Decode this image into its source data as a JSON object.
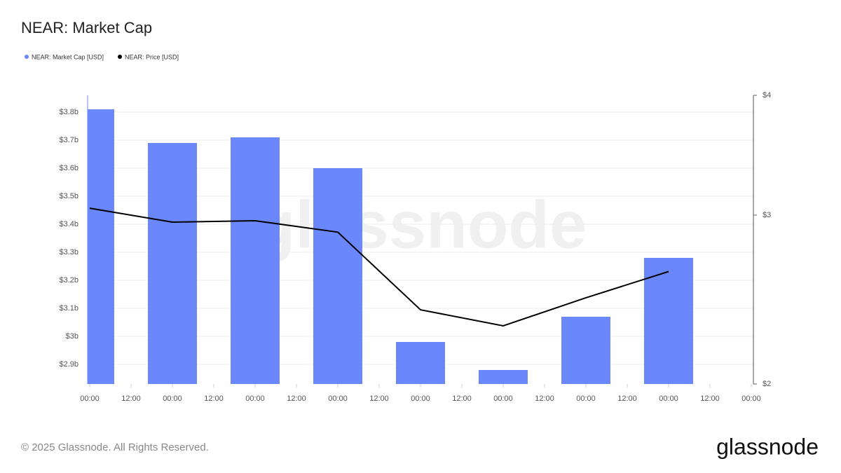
{
  "title": "NEAR: Market Cap",
  "watermark": "glassnode",
  "footer": {
    "copyright": "© 2025 Glassnode. All Rights Reserved.",
    "logo": "glassnode"
  },
  "chart_data": {
    "type": "bar",
    "x": [
      0,
      24,
      48,
      72,
      96,
      120,
      144,
      168
    ],
    "xlim": [
      0,
      192
    ],
    "xticks": [
      {
        "value": 0,
        "label": "00:00"
      },
      {
        "value": 12,
        "label": "12:00"
      },
      {
        "value": 24,
        "label": "00:00"
      },
      {
        "value": 36,
        "label": "12:00"
      },
      {
        "value": 48,
        "label": "00:00"
      },
      {
        "value": 60,
        "label": "12:00"
      },
      {
        "value": 72,
        "label": "00:00"
      },
      {
        "value": 84,
        "label": "12:00"
      },
      {
        "value": 96,
        "label": "00:00"
      },
      {
        "value": 108,
        "label": "12:00"
      },
      {
        "value": 120,
        "label": "00:00"
      },
      {
        "value": 132,
        "label": "12:00"
      },
      {
        "value": 144,
        "label": "00:00"
      },
      {
        "value": 156,
        "label": "12:00"
      },
      {
        "value": 168,
        "label": "00:00"
      },
      {
        "value": 180,
        "label": "12:00"
      },
      {
        "value": 192,
        "label": "00:00"
      }
    ],
    "ylim": [
      2.83,
      3.86
    ],
    "yticks": [
      {
        "value": 2.9,
        "label": "$2.9b"
      },
      {
        "value": 3.0,
        "label": "$3b"
      },
      {
        "value": 3.1,
        "label": "$3.1b"
      },
      {
        "value": 3.2,
        "label": "$3.2b"
      },
      {
        "value": 3.3,
        "label": "$3.3b"
      },
      {
        "value": 3.4,
        "label": "$3.4b"
      },
      {
        "value": 3.5,
        "label": "$3.5b"
      },
      {
        "value": 3.6,
        "label": "$3.6b"
      },
      {
        "value": 3.7,
        "label": "$3.7b"
      },
      {
        "value": 3.8,
        "label": "$3.8b"
      }
    ],
    "y2lim": [
      2,
      4
    ],
    "y2ticks": [
      {
        "value": 2,
        "label": "$2"
      },
      {
        "value": 3,
        "label": "$3"
      },
      {
        "value": 4,
        "label": "$4"
      }
    ],
    "y2scale": "log",
    "grid": true,
    "legend": "top-left",
    "series": [
      {
        "name": "NEAR: Market Cap [USD]",
        "type": "bar",
        "color": "#6a88fc",
        "values": [
          3.81,
          3.69,
          3.71,
          3.6,
          2.98,
          2.88,
          3.07,
          3.28
        ]
      },
      {
        "name": "NEAR: Price [USD]",
        "type": "line",
        "axis": "y2",
        "color": "#000000",
        "values": [
          3.05,
          2.95,
          2.96,
          2.88,
          2.39,
          2.3,
          2.46,
          2.62
        ]
      }
    ]
  }
}
